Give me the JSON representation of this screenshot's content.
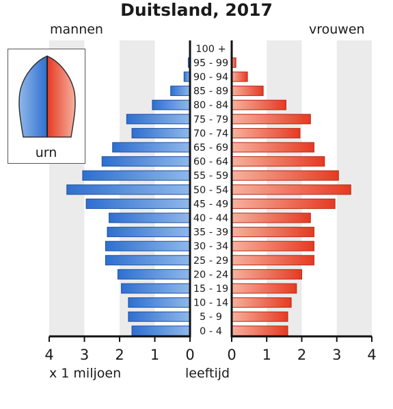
{
  "chart_data": {
    "type": "bar",
    "title": "Duitsland, 2017",
    "left_label": "mannen",
    "right_label": "vrouwen",
    "xlabel": "x 1 miljoen",
    "ylabel": "leeftijd",
    "xlim": [
      0,
      4
    ],
    "x_ticks_left": [
      "4",
      "3",
      "2",
      "1",
      "0"
    ],
    "x_ticks_right": [
      "0",
      "1",
      "2",
      "3",
      "4"
    ],
    "categories": [
      "100 +",
      "95 - 99",
      "90 - 94",
      "85 - 89",
      "80 - 84",
      "75 - 79",
      "70 - 74",
      "65 - 69",
      "60 - 64",
      "55 - 59",
      "50 - 54",
      "45 - 49",
      "40 - 44",
      "35 - 39",
      "30 - 34",
      "25 - 29",
      "20 - 24",
      "15 - 19",
      "10 - 14",
      "5 - 9",
      "0 - 4"
    ],
    "series": [
      {
        "name": "mannen",
        "values": [
          0.005,
          0.05,
          0.17,
          0.55,
          1.07,
          1.8,
          1.65,
          2.2,
          2.5,
          3.05,
          3.5,
          2.95,
          2.3,
          2.35,
          2.4,
          2.4,
          2.05,
          1.95,
          1.75,
          1.75,
          1.65
        ]
      },
      {
        "name": "vrouwen",
        "values": [
          0.02,
          0.12,
          0.45,
          0.9,
          1.55,
          2.25,
          1.95,
          2.35,
          2.65,
          3.05,
          3.4,
          2.95,
          2.25,
          2.35,
          2.35,
          2.35,
          2.0,
          1.85,
          1.7,
          1.6,
          1.6
        ]
      }
    ],
    "colors": {
      "men_dark": "#2f6fd0",
      "men_light": "#8fb8ea",
      "women_dark": "#e63a22",
      "women_light": "#f6b29f",
      "grid_band": "#ebebeb"
    }
  },
  "legend": {
    "label": "urn"
  }
}
